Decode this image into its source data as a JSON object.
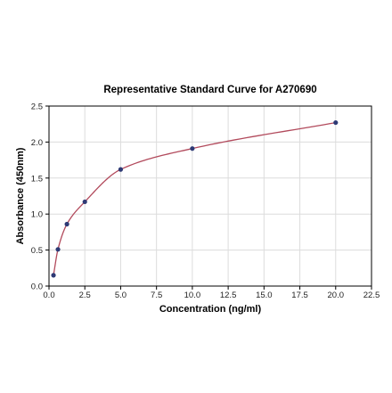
{
  "chart_data": {
    "type": "scatter",
    "title": "Representative Standard Curve for A270690",
    "xlabel": "Concentration (ng/ml)",
    "ylabel": "Absorbance (450nm)",
    "xlim": [
      0,
      22.5
    ],
    "ylim": [
      0,
      2.5
    ],
    "x_ticks": [
      "0.0",
      "2.5",
      "5.0",
      "7.5",
      "10.0",
      "12.5",
      "15.0",
      "17.5",
      "20.0",
      "22.5"
    ],
    "y_ticks": [
      "0.0",
      "0.5",
      "1.0",
      "1.5",
      "2.0",
      "2.5"
    ],
    "grid": true,
    "series": [
      {
        "x": [
          0.313,
          0.625,
          1.25,
          2.5,
          5.0,
          10.0,
          20.0
        ],
        "y": [
          0.15,
          0.51,
          0.86,
          1.17,
          1.62,
          1.91,
          2.27
        ]
      }
    ],
    "fit_curve": {
      "type": "4PL",
      "x_range": [
        0.313,
        20.0
      ]
    },
    "colors": {
      "points": "#2e3a75",
      "curve": "#b24a5c",
      "grid": "#dcdcdc",
      "axis": "#000000"
    }
  }
}
